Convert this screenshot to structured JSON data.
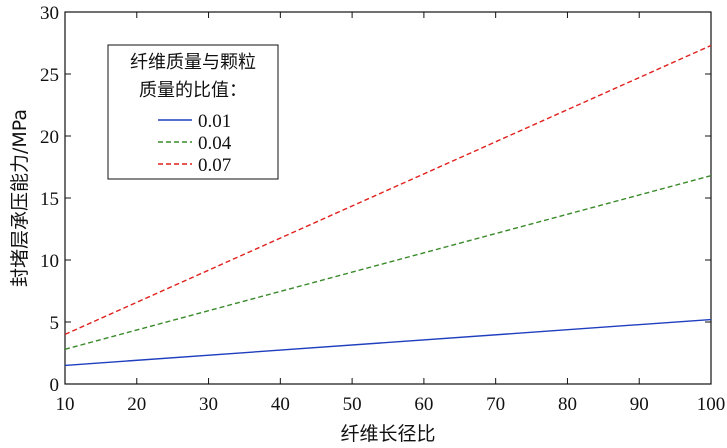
{
  "chart_data": {
    "type": "line",
    "xlabel": "纤维长径比",
    "ylabel": "封堵层承压能力/MPa",
    "xlim": [
      10,
      100
    ],
    "ylim": [
      0,
      30
    ],
    "xticks": [
      10,
      20,
      30,
      40,
      50,
      60,
      70,
      80,
      90,
      100
    ],
    "yticks": [
      0,
      5,
      10,
      15,
      20,
      25,
      30
    ],
    "grid": false,
    "legend": {
      "title_line1": "纤维质量与颗粒",
      "title_line2": "质量的比值：",
      "placement": "top-left"
    },
    "series": [
      {
        "name": "0.01",
        "color": "#1f3fbf",
        "dash": "solid",
        "x": [
          10,
          100
        ],
        "y": [
          1.5,
          5.2
        ]
      },
      {
        "name": "0.04",
        "color": "#3a8a2a",
        "dash": "dashed",
        "x": [
          10,
          100
        ],
        "y": [
          2.8,
          16.8
        ]
      },
      {
        "name": "0.07",
        "color": "#e0201c",
        "dash": "dashed",
        "x": [
          10,
          100
        ],
        "y": [
          4.0,
          27.3
        ]
      }
    ]
  }
}
